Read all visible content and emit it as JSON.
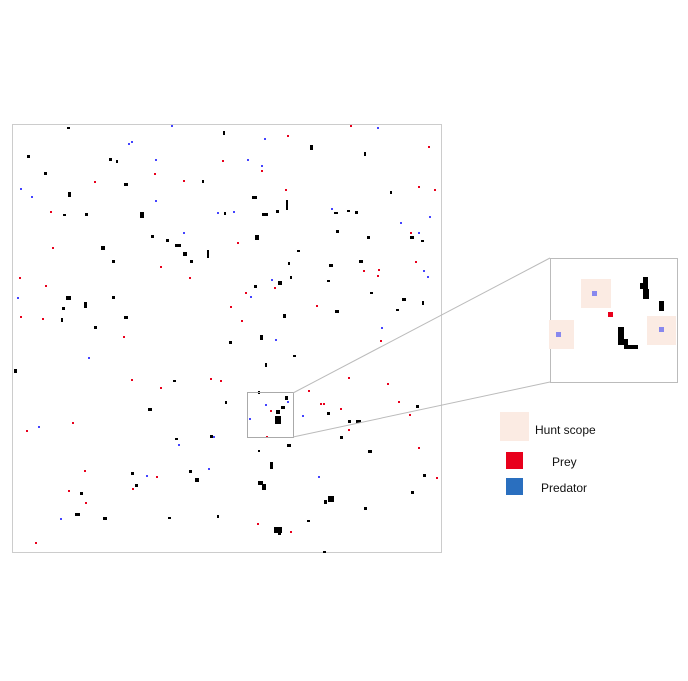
{
  "legend": {
    "hunt_scope_label": "Hunt scope",
    "prey_label": "Prey",
    "predator_label": "Predator"
  },
  "colors": {
    "hunt_scope": "#fbebe3",
    "prey": "#e8001c",
    "predator": "#2a6fbf",
    "predator_dot": "#4444ff",
    "obstacle": "#000000",
    "frame": "#cccccc"
  }
}
